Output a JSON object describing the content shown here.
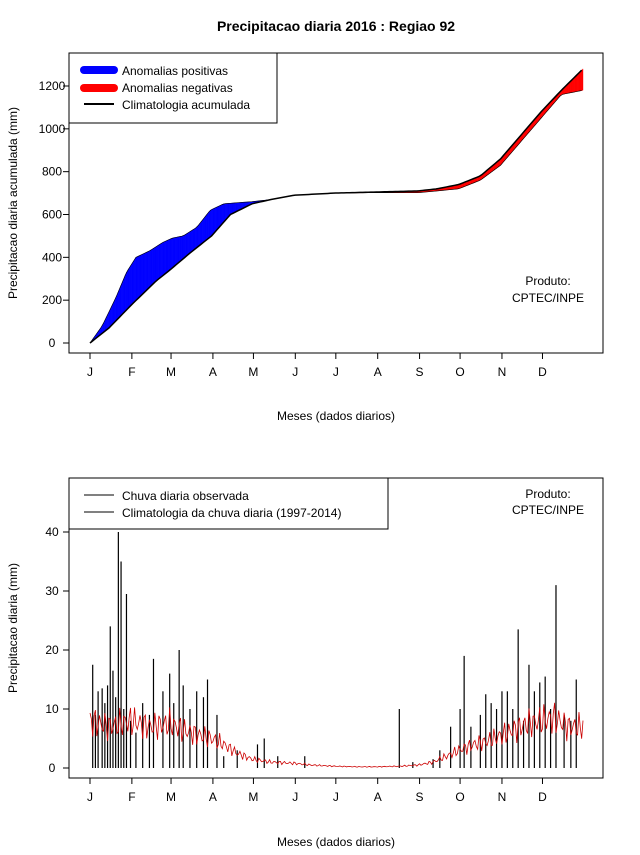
{
  "title": "Precipitacao diaria 2016 : Regiao 92",
  "months": [
    "J",
    "F",
    "M",
    "A",
    "M",
    "J",
    "J",
    "A",
    "S",
    "O",
    "N",
    "D"
  ],
  "chart_data": [
    {
      "type": "area",
      "title": "Precipitacao diaria 2016 : Regiao 92",
      "xlabel": "Meses (dados diarios)",
      "ylabel": "Precipitacao diaria acumulada (mm)",
      "xlim": [
        1,
        366
      ],
      "ylim": [
        0,
        1300
      ],
      "yticks": [
        0,
        200,
        400,
        600,
        800,
        1000,
        1200
      ],
      "legend": [
        "Anomalias positivas",
        "Anomalias negativas",
        "Climatologia acumulada"
      ],
      "colors": {
        "positive": "#0000ff",
        "negative": "#ff0000",
        "climatology": "#000000"
      },
      "credit": [
        "Produto:",
        "CPTEC/INPE"
      ],
      "climatology_x": [
        1,
        15,
        32,
        50,
        60,
        75,
        91,
        105,
        121,
        135,
        152,
        182,
        213,
        244,
        258,
        274,
        290,
        305,
        320,
        335,
        350,
        366
      ],
      "climatology_y": [
        0,
        70,
        180,
        290,
        340,
        420,
        500,
        600,
        650,
        670,
        690,
        700,
        705,
        710,
        720,
        740,
        780,
        860,
        970,
        1080,
        1180,
        1280
      ],
      "observed_x": [
        1,
        10,
        20,
        28,
        35,
        45,
        55,
        62,
        70,
        80,
        90,
        100,
        110,
        121,
        135,
        152,
        182,
        213,
        244,
        258,
        274,
        290,
        305,
        320,
        335,
        350,
        366
      ],
      "observed_y": [
        0,
        80,
        210,
        330,
        400,
        430,
        470,
        490,
        500,
        540,
        620,
        650,
        655,
        660,
        670,
        690,
        700,
        702,
        702,
        710,
        720,
        760,
        830,
        940,
        1050,
        1160,
        1180
      ]
    },
    {
      "type": "bar",
      "xlabel": "Meses (dados diarios)",
      "ylabel": "Precipitacao diaria (mm)",
      "xlim": [
        1,
        366
      ],
      "ylim": [
        0,
        40
      ],
      "yticks": [
        0,
        10,
        20,
        30,
        40
      ],
      "legend": [
        "Chuva diaria observada",
        "Climatologia da chuva diaria (1997-2014)"
      ],
      "colors": {
        "observed": "#000000",
        "climatology": "#cc0000"
      },
      "credit": [
        "Produto:",
        "CPTEC/INPE"
      ],
      "daily_observed_peaks": [
        {
          "day": 3,
          "value": 17.5
        },
        {
          "day": 5,
          "value": 9
        },
        {
          "day": 7,
          "value": 13
        },
        {
          "day": 10,
          "value": 13.5
        },
        {
          "day": 12,
          "value": 11
        },
        {
          "day": 14,
          "value": 14
        },
        {
          "day": 16,
          "value": 24
        },
        {
          "day": 18,
          "value": 16.5
        },
        {
          "day": 20,
          "value": 12
        },
        {
          "day": 22,
          "value": 40
        },
        {
          "day": 24,
          "value": 35
        },
        {
          "day": 26,
          "value": 10
        },
        {
          "day": 28,
          "value": 29.5
        },
        {
          "day": 31,
          "value": 8
        },
        {
          "day": 35,
          "value": 6
        },
        {
          "day": 40,
          "value": 11
        },
        {
          "day": 45,
          "value": 9
        },
        {
          "day": 48,
          "value": 18.5
        },
        {
          "day": 55,
          "value": 13
        },
        {
          "day": 60,
          "value": 16
        },
        {
          "day": 63,
          "value": 11
        },
        {
          "day": 67,
          "value": 20
        },
        {
          "day": 70,
          "value": 14
        },
        {
          "day": 75,
          "value": 10
        },
        {
          "day": 80,
          "value": 13
        },
        {
          "day": 85,
          "value": 12
        },
        {
          "day": 88,
          "value": 15
        },
        {
          "day": 95,
          "value": 9
        },
        {
          "day": 100,
          "value": 2
        },
        {
          "day": 110,
          "value": 3
        },
        {
          "day": 125,
          "value": 4
        },
        {
          "day": 130,
          "value": 5
        },
        {
          "day": 140,
          "value": 2
        },
        {
          "day": 160,
          "value": 2
        },
        {
          "day": 230,
          "value": 10
        },
        {
          "day": 240,
          "value": 1
        },
        {
          "day": 255,
          "value": 1.5
        },
        {
          "day": 260,
          "value": 3
        },
        {
          "day": 268,
          "value": 7
        },
        {
          "day": 275,
          "value": 10
        },
        {
          "day": 278,
          "value": 19
        },
        {
          "day": 283,
          "value": 7
        },
        {
          "day": 290,
          "value": 9
        },
        {
          "day": 294,
          "value": 12.5
        },
        {
          "day": 298,
          "value": 11
        },
        {
          "day": 302,
          "value": 10
        },
        {
          "day": 306,
          "value": 13
        },
        {
          "day": 310,
          "value": 13
        },
        {
          "day": 314,
          "value": 10
        },
        {
          "day": 318,
          "value": 23.5
        },
        {
          "day": 322,
          "value": 8
        },
        {
          "day": 326,
          "value": 17.5
        },
        {
          "day": 330,
          "value": 13
        },
        {
          "day": 334,
          "value": 14.5
        },
        {
          "day": 338,
          "value": 15.5
        },
        {
          "day": 342,
          "value": 10
        },
        {
          "day": 346,
          "value": 31
        },
        {
          "day": 352,
          "value": 9
        },
        {
          "day": 357,
          "value": 8
        },
        {
          "day": 361,
          "value": 15
        }
      ],
      "climatology_daily_x": [
        1,
        15,
        32,
        45,
        60,
        75,
        91,
        100,
        110,
        121,
        135,
        152,
        165,
        182,
        200,
        213,
        230,
        244,
        255,
        265,
        274,
        285,
        295,
        305,
        315,
        325,
        335,
        345,
        355,
        366
      ],
      "climatology_daily_y": [
        8,
        7,
        8,
        7,
        7.5,
        6,
        5,
        4,
        2.5,
        1.5,
        1,
        0.8,
        0.5,
        0.3,
        0.2,
        0.2,
        0.3,
        0.5,
        1,
        2,
        3,
        4,
        4.5,
        5.5,
        6.5,
        7.5,
        8,
        8.5,
        7,
        7
      ]
    }
  ]
}
